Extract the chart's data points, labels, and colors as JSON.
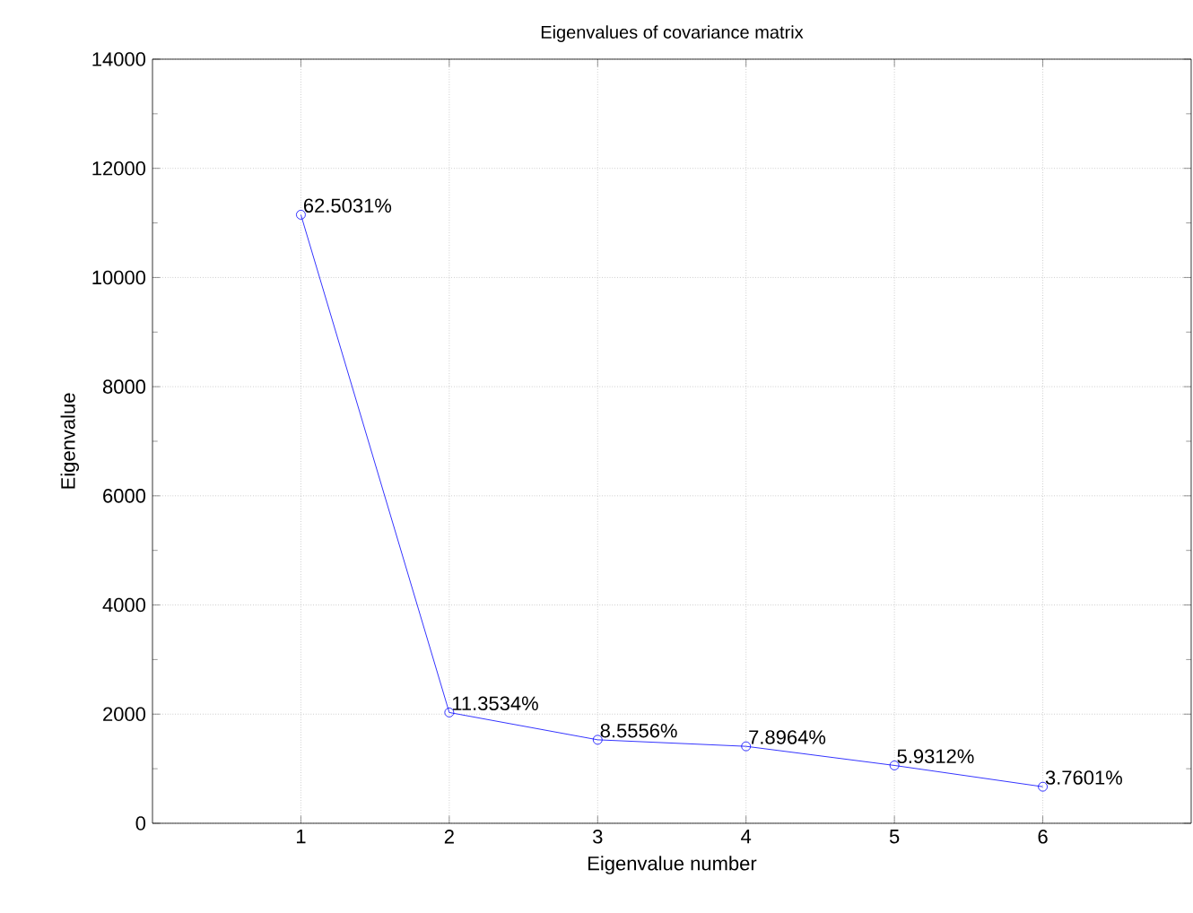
{
  "chart_data": {
    "type": "line",
    "title": "Eigenvalues of covariance matrix",
    "xlabel": "Eigenvalue number",
    "ylabel": "Eigenvalue",
    "x": [
      1,
      2,
      3,
      4,
      5,
      6
    ],
    "series": [
      {
        "color": "#0000ff",
        "values": [
          11150,
          2030,
          1530,
          1410,
          1060,
          670
        ]
      }
    ],
    "annotations": [
      {
        "text": "62.5031%",
        "x": 1,
        "y": 11150
      },
      {
        "text": "11.3534%",
        "x": 2,
        "y": 2030
      },
      {
        "text": "8.5556%",
        "x": 3,
        "y": 1530
      },
      {
        "text": "7.8964%",
        "x": 4,
        "y": 1410
      },
      {
        "text": "5.9312%",
        "x": 5,
        "y": 1060
      },
      {
        "text": "3.7601%",
        "x": 6,
        "y": 670
      }
    ],
    "xlim": [
      0,
      7
    ],
    "ylim": [
      0,
      14000
    ],
    "xticks": [
      1,
      2,
      3,
      4,
      5,
      6
    ],
    "yticks": [
      0,
      2000,
      4000,
      6000,
      8000,
      10000,
      12000,
      14000
    ],
    "grid": true,
    "marker": "circle",
    "line_style": "solid"
  }
}
